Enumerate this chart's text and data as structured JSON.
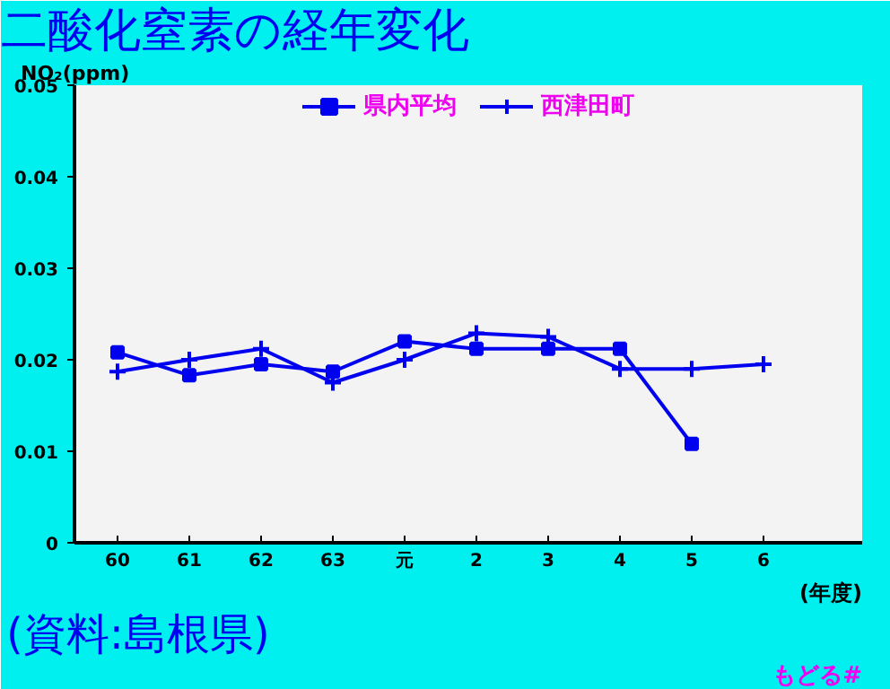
{
  "chart_data": {
    "type": "line",
    "title": "二酸化窒素の経年変化",
    "ylabel": "NO₂(ppm)",
    "xlabel": "(年度)",
    "categories": [
      "60",
      "61",
      "62",
      "63",
      "元",
      "2",
      "3",
      "4",
      "5",
      "6"
    ],
    "series": [
      {
        "name": "県内平均",
        "color": "#0000f0",
        "marker": "square",
        "values": [
          0.0208,
          0.0183,
          0.0195,
          0.0187,
          0.022,
          0.0212,
          0.0212,
          0.0212,
          0.0108,
          null
        ]
      },
      {
        "name": "西津田町",
        "color": "#0000f0",
        "marker": "cross",
        "values": [
          0.0187,
          0.02,
          0.0212,
          0.0175,
          0.02,
          0.0229,
          0.0225,
          0.019,
          0.019,
          0.0195
        ]
      }
    ],
    "ylim": [
      0,
      0.05
    ],
    "yticks": [
      0,
      0.01,
      0.02,
      0.03,
      0.04,
      0.05
    ],
    "legend": "top",
    "grid": false,
    "annotations": [
      "(資料:島根県)",
      "もどる#"
    ]
  }
}
